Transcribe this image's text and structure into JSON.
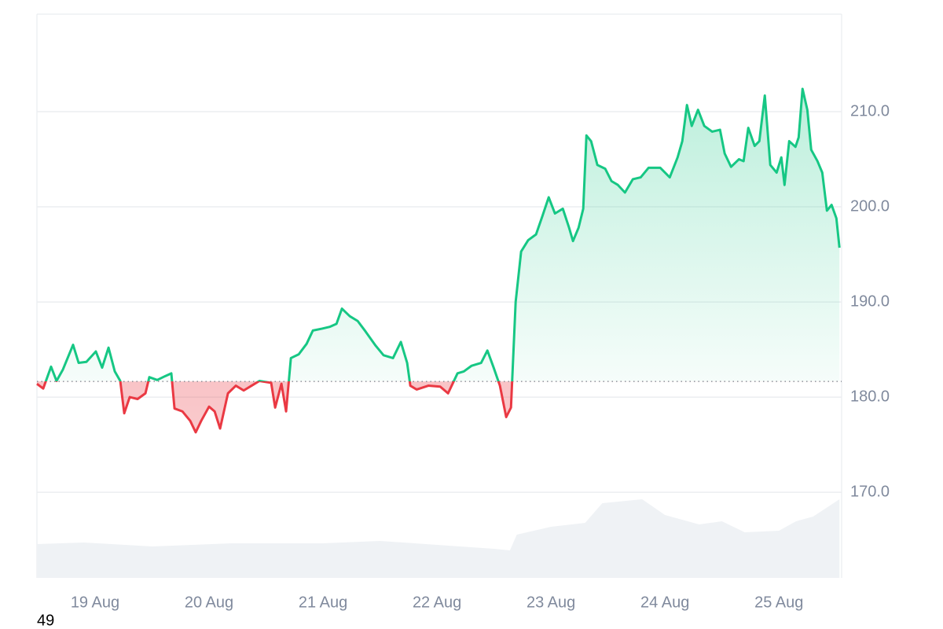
{
  "chart_data": {
    "type": "line",
    "corner_label": "49",
    "xlim": [
      18.49,
      25.55
    ],
    "xticks": [
      {
        "value": 19,
        "label": "19 Aug"
      },
      {
        "value": 20,
        "label": "20 Aug"
      },
      {
        "value": 21,
        "label": "21 Aug"
      },
      {
        "value": 22,
        "label": "22 Aug"
      },
      {
        "value": 23,
        "label": "23 Aug"
      },
      {
        "value": 24,
        "label": "24 Aug"
      },
      {
        "value": 25,
        "label": "25 Aug"
      }
    ],
    "ylim": [
      161.0,
      220.25
    ],
    "yticks": [
      {
        "value": 170,
        "label": "170.0"
      },
      {
        "value": 180,
        "label": "180.0"
      },
      {
        "value": 190,
        "label": "190.0"
      },
      {
        "value": 200,
        "label": "200.0"
      },
      {
        "value": 210,
        "label": "210.0"
      }
    ],
    "grid": true,
    "baseline": 181.65,
    "up_color": "#16c784",
    "down_color": "#ea3943",
    "x": [
      18.49,
      18.545,
      18.614,
      18.662,
      18.718,
      18.807,
      18.856,
      18.924,
      19.007,
      19.062,
      19.118,
      19.173,
      19.221,
      19.256,
      19.304,
      19.373,
      19.442,
      19.476,
      19.545,
      19.614,
      19.669,
      19.697,
      19.766,
      19.835,
      19.883,
      19.931,
      20.0,
      20.049,
      20.097,
      20.166,
      20.235,
      20.304,
      20.373,
      20.442,
      20.545,
      20.58,
      20.635,
      20.676,
      20.718,
      20.787,
      20.856,
      20.911,
      20.993,
      21.062,
      21.118,
      21.166,
      21.235,
      21.304,
      21.373,
      21.462,
      21.531,
      21.614,
      21.683,
      21.738,
      21.766,
      21.821,
      21.924,
      22.028,
      22.097,
      22.18,
      22.235,
      22.304,
      22.387,
      22.442,
      22.497,
      22.552,
      22.607,
      22.649,
      22.69,
      22.738,
      22.8,
      22.869,
      22.924,
      22.98,
      23.035,
      23.104,
      23.159,
      23.193,
      23.242,
      23.283,
      23.311,
      23.352,
      23.407,
      23.476,
      23.531,
      23.587,
      23.649,
      23.718,
      23.787,
      23.856,
      23.959,
      24.042,
      24.111,
      24.152,
      24.193,
      24.235,
      24.29,
      24.345,
      24.414,
      24.483,
      24.524,
      24.58,
      24.649,
      24.69,
      24.731,
      24.787,
      24.828,
      24.876,
      24.924,
      24.98,
      25.021,
      25.049,
      25.09,
      25.145,
      25.173,
      25.207,
      25.249,
      25.283,
      25.338,
      25.38,
      25.421,
      25.462,
      25.504,
      25.531
    ],
    "series": [
      {
        "values": [
          181.4,
          180.9,
          183.2,
          181.7,
          182.9,
          185.5,
          183.6,
          183.7,
          184.8,
          183.1,
          185.2,
          182.7,
          181.7,
          178.3,
          180.0,
          179.8,
          180.4,
          182.1,
          181.8,
          182.2,
          182.5,
          178.8,
          178.5,
          177.5,
          176.3,
          177.5,
          179.0,
          178.5,
          176.7,
          180.4,
          181.2,
          180.7,
          181.2,
          181.7,
          181.5,
          178.9,
          181.4,
          178.5,
          184.1,
          184.5,
          185.6,
          187.0,
          187.2,
          187.4,
          187.7,
          189.3,
          188.5,
          188.0,
          186.9,
          185.4,
          184.4,
          184.1,
          185.8,
          183.6,
          181.2,
          180.8,
          181.2,
          181.1,
          180.4,
          182.5,
          182.7,
          183.3,
          183.6,
          184.9,
          183.1,
          181.2,
          177.9,
          178.9,
          190.0,
          195.3,
          196.5,
          197.1,
          199.0,
          201.0,
          199.3,
          199.8,
          197.8,
          196.4,
          197.8,
          199.8,
          207.5,
          206.9,
          204.4,
          204.0,
          202.7,
          202.3,
          201.5,
          202.9,
          203.1,
          204.1,
          204.1,
          203.1,
          205.2,
          206.9,
          210.7,
          208.5,
          210.2,
          208.5,
          207.9,
          208.1,
          205.6,
          204.2,
          205.0,
          204.8,
          208.3,
          206.4,
          206.9,
          211.7,
          204.4,
          203.6,
          205.2,
          202.3,
          206.9,
          206.3,
          207.3,
          212.4,
          210.2,
          206.0,
          204.8,
          203.6,
          199.6,
          200.2,
          198.8,
          195.7
        ]
      }
    ],
    "volume": {
      "color": "#eff2f5",
      "lim": [
        0,
        120
      ],
      "x": [
        18.49,
        18.9,
        19.5,
        20.2,
        21.0,
        21.5,
        22.0,
        22.5,
        22.64,
        22.7,
        23.0,
        23.3,
        23.45,
        23.8,
        24.0,
        24.3,
        24.5,
        24.7,
        25.0,
        25.15,
        25.3,
        25.531
      ],
      "values": [
        43,
        45,
        40,
        44,
        44,
        47,
        42,
        37,
        35,
        55,
        65,
        70,
        95,
        100,
        80,
        68,
        72,
        58,
        60,
        72,
        78,
        100
      ]
    }
  }
}
